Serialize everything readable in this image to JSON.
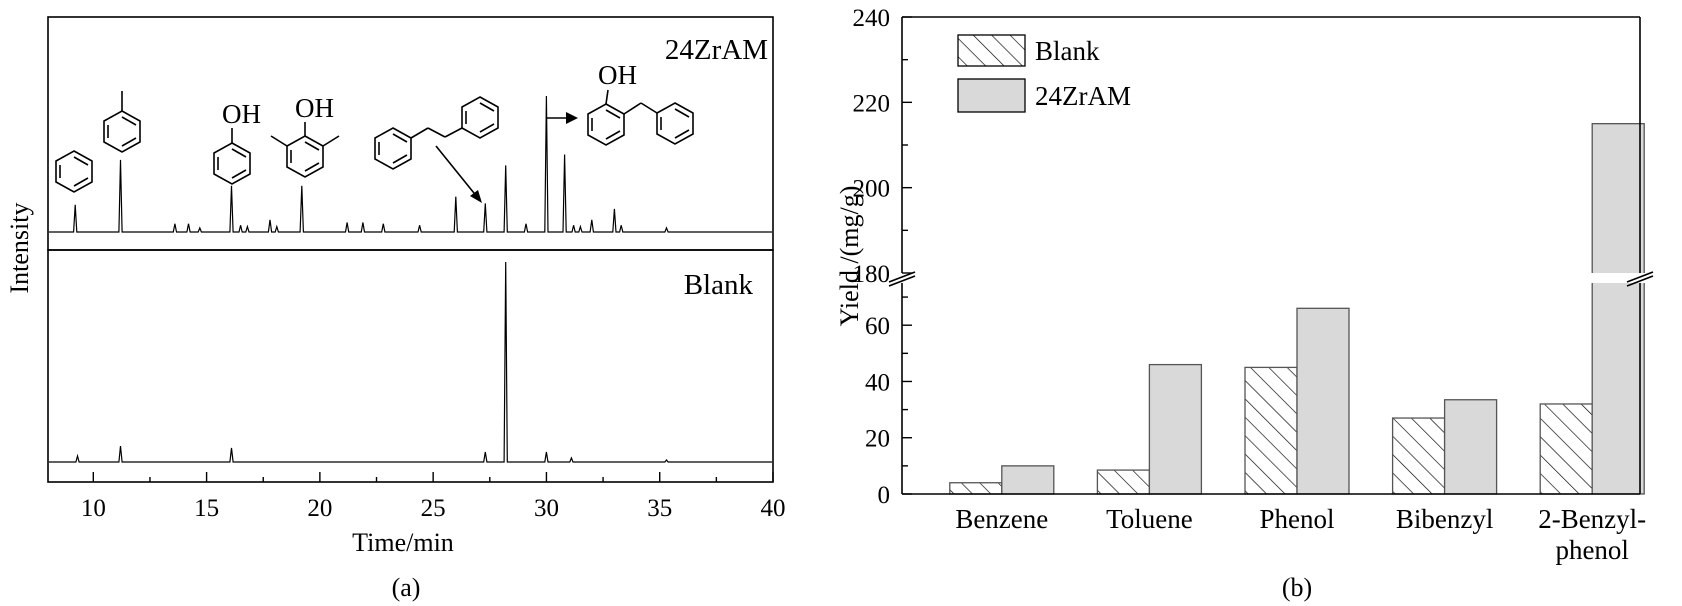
{
  "chart_data": [
    {
      "type": "line",
      "panel_caption": "(a)",
      "xlabel": "Time/min",
      "ylabel": "Intensity",
      "xlim": [
        8,
        40
      ],
      "xticks": [
        10,
        15,
        20,
        25,
        30,
        35,
        40
      ],
      "series": [
        {
          "name": "24ZrAM",
          "peaks": [
            {
              "x": 9.2,
              "y": 0.2
            },
            {
              "x": 11.2,
              "y": 0.53
            },
            {
              "x": 13.6,
              "y": 0.06
            },
            {
              "x": 14.2,
              "y": 0.06
            },
            {
              "x": 14.7,
              "y": 0.03
            },
            {
              "x": 16.1,
              "y": 0.34
            },
            {
              "x": 16.5,
              "y": 0.05
            },
            {
              "x": 16.8,
              "y": 0.04
            },
            {
              "x": 17.8,
              "y": 0.09
            },
            {
              "x": 18.1,
              "y": 0.04
            },
            {
              "x": 19.2,
              "y": 0.34
            },
            {
              "x": 21.2,
              "y": 0.07
            },
            {
              "x": 21.9,
              "y": 0.07
            },
            {
              "x": 22.8,
              "y": 0.06
            },
            {
              "x": 24.4,
              "y": 0.05
            },
            {
              "x": 26.0,
              "y": 0.26
            },
            {
              "x": 27.3,
              "y": 0.21
            },
            {
              "x": 28.2,
              "y": 0.49
            },
            {
              "x": 29.1,
              "y": 0.06
            },
            {
              "x": 30.0,
              "y": 1.0
            },
            {
              "x": 30.8,
              "y": 0.57
            },
            {
              "x": 31.2,
              "y": 0.05
            },
            {
              "x": 31.5,
              "y": 0.04
            },
            {
              "x": 32.0,
              "y": 0.09
            },
            {
              "x": 33.0,
              "y": 0.17
            },
            {
              "x": 33.3,
              "y": 0.05
            },
            {
              "x": 35.3,
              "y": 0.03
            }
          ]
        },
        {
          "name": "Blank",
          "peaks": [
            {
              "x": 9.3,
              "y": 0.03
            },
            {
              "x": 11.2,
              "y": 0.08
            },
            {
              "x": 16.1,
              "y": 0.07
            },
            {
              "x": 27.3,
              "y": 0.05
            },
            {
              "x": 28.2,
              "y": 1.0
            },
            {
              "x": 30.0,
              "y": 0.05
            },
            {
              "x": 31.1,
              "y": 0.02
            },
            {
              "x": 35.3,
              "y": 0.01
            }
          ]
        }
      ],
      "structure_labels": [
        "OH",
        "OH",
        "OH"
      ]
    },
    {
      "type": "bar",
      "panel_caption": "(b)",
      "ylabel": "Yield /(mg/g)",
      "categories": [
        "Benzene",
        "Toluene",
        "Phenol",
        "Bibenzyl",
        "2-Benzyl-\nphenol"
      ],
      "ylim_lower": [
        0,
        75
      ],
      "ylim_upper": [
        180,
        240
      ],
      "yticks_lower": [
        0,
        20,
        40,
        60
      ],
      "yticks_upper": [
        180,
        200,
        220,
        240
      ],
      "axis_break": true,
      "legend_position": "top-left",
      "series": [
        {
          "name": "Blank",
          "values": [
            4,
            8.5,
            45,
            27,
            32
          ],
          "pattern": "hatched"
        },
        {
          "name": "24ZrAM",
          "values": [
            10,
            46,
            66,
            33.5,
            215
          ],
          "color": "#d9d9d9"
        }
      ]
    }
  ]
}
